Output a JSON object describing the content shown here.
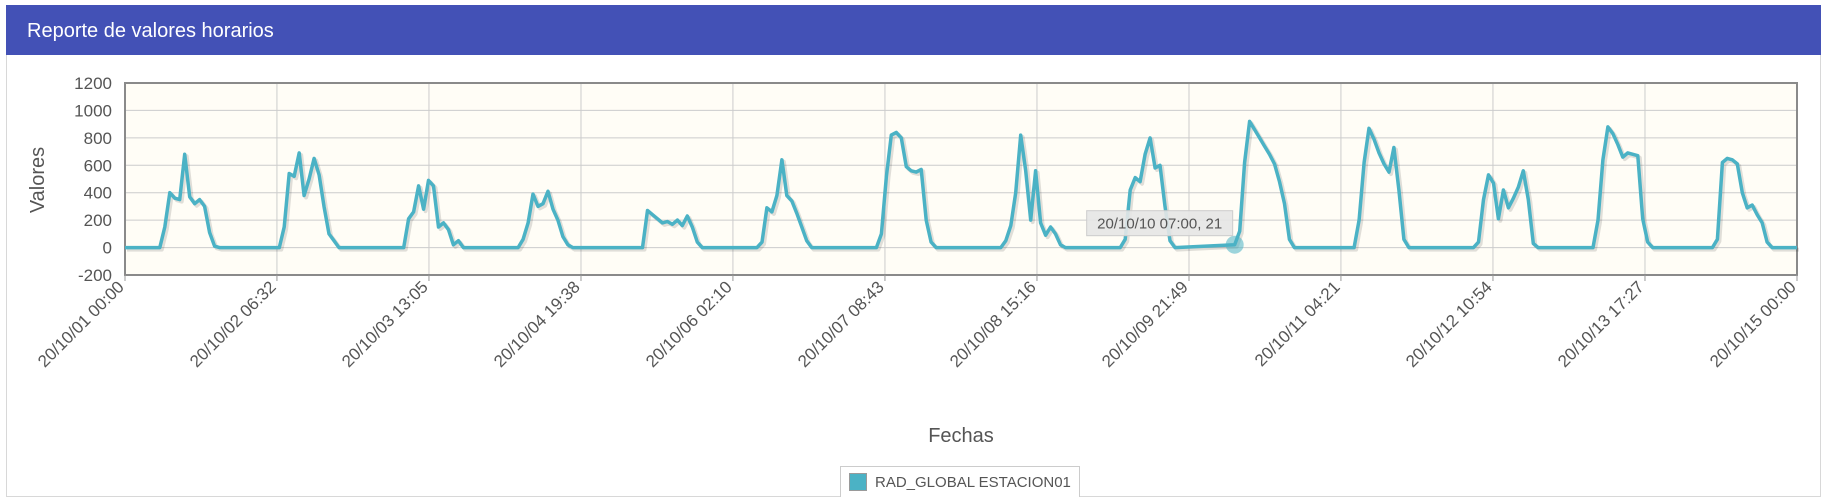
{
  "header": {
    "title": "Reporte de valores horarios"
  },
  "chart_data": {
    "type": "line",
    "title": "",
    "xlabel": "Fechas",
    "ylabel": "Valores",
    "ylim": [
      -200,
      1200
    ],
    "yticks": [
      -200,
      0,
      200,
      400,
      600,
      800,
      1000,
      1200
    ],
    "xlim": [
      "20/10/01 00:00",
      "20/10/15 00:00"
    ],
    "xtick_labels": [
      "20/10/01 00:00",
      "20/10/02 06:32",
      "20/10/03 13:05",
      "20/10/04 19:38",
      "20/10/06 02:10",
      "20/10/07 08:43",
      "20/10/08 15:16",
      "20/10/09 21:49",
      "20/10/11 04:21",
      "20/10/12 10:54",
      "20/10/13 17:27",
      "20/10/15 00:00"
    ],
    "grid": true,
    "legend_position": "bottom-center",
    "series": [
      {
        "name": "RAD_GLOBAL ESTACION01",
        "color": "#4bb2c5",
        "points": [
          [
            "20/10/01 00:00",
            0
          ],
          [
            "20/10/01 07:00",
            0
          ],
          [
            "20/10/01 08:00",
            150
          ],
          [
            "20/10/01 09:00",
            400
          ],
          [
            "20/10/01 10:00",
            360
          ],
          [
            "20/10/01 11:00",
            350
          ],
          [
            "20/10/01 12:00",
            680
          ],
          [
            "20/10/01 13:00",
            370
          ],
          [
            "20/10/01 14:00",
            320
          ],
          [
            "20/10/01 15:00",
            350
          ],
          [
            "20/10/01 16:00",
            300
          ],
          [
            "20/10/01 17:00",
            110
          ],
          [
            "20/10/01 18:00",
            10
          ],
          [
            "20/10/01 19:00",
            0
          ],
          [
            "20/10/02 07:00",
            0
          ],
          [
            "20/10/02 08:00",
            150
          ],
          [
            "20/10/02 09:00",
            540
          ],
          [
            "20/10/02 10:00",
            520
          ],
          [
            "20/10/02 11:00",
            690
          ],
          [
            "20/10/02 12:00",
            380
          ],
          [
            "20/10/02 13:00",
            500
          ],
          [
            "20/10/02 14:00",
            650
          ],
          [
            "20/10/02 15:00",
            530
          ],
          [
            "20/10/02 16:00",
            300
          ],
          [
            "20/10/02 17:00",
            100
          ],
          [
            "20/10/02 18:00",
            50
          ],
          [
            "20/10/02 19:00",
            0
          ],
          [
            "20/10/03 08:00",
            0
          ],
          [
            "20/10/03 09:00",
            210
          ],
          [
            "20/10/03 10:00",
            260
          ],
          [
            "20/10/03 11:00",
            450
          ],
          [
            "20/10/03 12:00",
            280
          ],
          [
            "20/10/03 13:00",
            490
          ],
          [
            "20/10/03 14:00",
            450
          ],
          [
            "20/10/03 15:00",
            150
          ],
          [
            "20/10/03 16:00",
            180
          ],
          [
            "20/10/03 17:00",
            130
          ],
          [
            "20/10/03 18:00",
            20
          ],
          [
            "20/10/03 19:00",
            50
          ],
          [
            "20/10/03 20:00",
            0
          ],
          [
            "20/10/04 07:00",
            0
          ],
          [
            "20/10/04 08:00",
            60
          ],
          [
            "20/10/04 09:00",
            180
          ],
          [
            "20/10/04 10:00",
            390
          ],
          [
            "20/10/04 11:00",
            300
          ],
          [
            "20/10/04 12:00",
            320
          ],
          [
            "20/10/04 13:00",
            410
          ],
          [
            "20/10/04 14:00",
            280
          ],
          [
            "20/10/04 15:00",
            200
          ],
          [
            "20/10/04 16:00",
            80
          ],
          [
            "20/10/04 17:00",
            20
          ],
          [
            "20/10/04 18:00",
            0
          ],
          [
            "20/10/05 08:00",
            0
          ],
          [
            "20/10/05 09:00",
            270
          ],
          [
            "20/10/05 10:00",
            240
          ],
          [
            "20/10/05 11:00",
            210
          ],
          [
            "20/10/05 12:00",
            180
          ],
          [
            "20/10/05 13:00",
            190
          ],
          [
            "20/10/05 14:00",
            170
          ],
          [
            "20/10/05 15:00",
            200
          ],
          [
            "20/10/05 16:00",
            160
          ],
          [
            "20/10/05 17:00",
            230
          ],
          [
            "20/10/05 18:00",
            150
          ],
          [
            "20/10/05 19:00",
            40
          ],
          [
            "20/10/05 20:00",
            0
          ],
          [
            "20/10/06 07:00",
            0
          ],
          [
            "20/10/06 08:00",
            40
          ],
          [
            "20/10/06 09:00",
            290
          ],
          [
            "20/10/06 10:00",
            260
          ],
          [
            "20/10/06 11:00",
            380
          ],
          [
            "20/10/06 12:00",
            640
          ],
          [
            "20/10/06 13:00",
            380
          ],
          [
            "20/10/06 14:00",
            340
          ],
          [
            "20/10/06 15:00",
            250
          ],
          [
            "20/10/06 16:00",
            150
          ],
          [
            "20/10/06 17:00",
            50
          ],
          [
            "20/10/06 18:00",
            0
          ],
          [
            "20/10/07 07:00",
            0
          ],
          [
            "20/10/07 08:00",
            100
          ],
          [
            "20/10/07 09:00",
            520
          ],
          [
            "20/10/07 10:00",
            820
          ],
          [
            "20/10/07 11:00",
            840
          ],
          [
            "20/10/07 12:00",
            800
          ],
          [
            "20/10/07 13:00",
            590
          ],
          [
            "20/10/07 14:00",
            560
          ],
          [
            "20/10/07 15:00",
            550
          ],
          [
            "20/10/07 16:00",
            570
          ],
          [
            "20/10/07 17:00",
            200
          ],
          [
            "20/10/07 18:00",
            40
          ],
          [
            "20/10/07 19:00",
            0
          ],
          [
            "20/10/08 08:00",
            0
          ],
          [
            "20/10/08 09:00",
            50
          ],
          [
            "20/10/08 10:00",
            160
          ],
          [
            "20/10/08 11:00",
            400
          ],
          [
            "20/10/08 12:00",
            820
          ],
          [
            "20/10/08 13:00",
            560
          ],
          [
            "20/10/08 14:00",
            200
          ],
          [
            "20/10/08 15:00",
            560
          ],
          [
            "20/10/08 16:00",
            180
          ],
          [
            "20/10/08 17:00",
            90
          ],
          [
            "20/10/08 18:00",
            150
          ],
          [
            "20/10/08 19:00",
            100
          ],
          [
            "20/10/08 20:00",
            20
          ],
          [
            "20/10/08 21:00",
            0
          ],
          [
            "20/10/09 08:00",
            0
          ],
          [
            "20/10/09 09:00",
            60
          ],
          [
            "20/10/09 10:00",
            420
          ],
          [
            "20/10/09 11:00",
            510
          ],
          [
            "20/10/09 12:00",
            480
          ],
          [
            "20/10/09 13:00",
            680
          ],
          [
            "20/10/09 14:00",
            800
          ],
          [
            "20/10/09 15:00",
            580
          ],
          [
            "20/10/09 16:00",
            600
          ],
          [
            "20/10/09 17:00",
            300
          ],
          [
            "20/10/09 18:00",
            50
          ],
          [
            "20/10/09 19:00",
            0
          ],
          [
            "20/10/10 07:00",
            21
          ],
          [
            "20/10/10 08:00",
            120
          ],
          [
            "20/10/10 09:00",
            620
          ],
          [
            "20/10/10 10:00",
            920
          ],
          [
            "20/10/10 11:00",
            860
          ],
          [
            "20/10/10 12:00",
            800
          ],
          [
            "20/10/10 13:00",
            740
          ],
          [
            "20/10/10 14:00",
            680
          ],
          [
            "20/10/10 15:00",
            610
          ],
          [
            "20/10/10 16:00",
            480
          ],
          [
            "20/10/10 17:00",
            320
          ],
          [
            "20/10/10 18:00",
            60
          ],
          [
            "20/10/10 19:00",
            0
          ],
          [
            "20/10/11 07:00",
            0
          ],
          [
            "20/10/11 08:00",
            200
          ],
          [
            "20/10/11 09:00",
            620
          ],
          [
            "20/10/11 10:00",
            870
          ],
          [
            "20/10/11 11:00",
            790
          ],
          [
            "20/10/11 12:00",
            690
          ],
          [
            "20/10/11 13:00",
            610
          ],
          [
            "20/10/11 14:00",
            550
          ],
          [
            "20/10/11 15:00",
            730
          ],
          [
            "20/10/11 16:00",
            420
          ],
          [
            "20/10/11 17:00",
            60
          ],
          [
            "20/10/11 18:00",
            0
          ],
          [
            "20/10/12 07:00",
            0
          ],
          [
            "20/10/12 08:00",
            40
          ],
          [
            "20/10/12 09:00",
            350
          ],
          [
            "20/10/12 10:00",
            530
          ],
          [
            "20/10/12 11:00",
            470
          ],
          [
            "20/10/12 12:00",
            210
          ],
          [
            "20/10/12 13:00",
            420
          ],
          [
            "20/10/12 14:00",
            290
          ],
          [
            "20/10/12 15:00",
            360
          ],
          [
            "20/10/12 16:00",
            440
          ],
          [
            "20/10/12 17:00",
            560
          ],
          [
            "20/10/12 18:00",
            350
          ],
          [
            "20/10/12 19:00",
            30
          ],
          [
            "20/10/12 20:00",
            0
          ],
          [
            "20/10/13 07:00",
            0
          ],
          [
            "20/10/13 08:00",
            200
          ],
          [
            "20/10/13 09:00",
            640
          ],
          [
            "20/10/13 10:00",
            880
          ],
          [
            "20/10/13 11:00",
            830
          ],
          [
            "20/10/13 12:00",
            750
          ],
          [
            "20/10/13 13:00",
            660
          ],
          [
            "20/10/13 14:00",
            690
          ],
          [
            "20/10/13 15:00",
            680
          ],
          [
            "20/10/13 16:00",
            670
          ],
          [
            "20/10/13 17:00",
            210
          ],
          [
            "20/10/13 18:00",
            40
          ],
          [
            "20/10/13 19:00",
            0
          ],
          [
            "20/10/14 07:00",
            0
          ],
          [
            "20/10/14 08:00",
            60
          ],
          [
            "20/10/14 09:00",
            620
          ],
          [
            "20/10/14 10:00",
            650
          ],
          [
            "20/10/14 11:00",
            640
          ],
          [
            "20/10/14 12:00",
            610
          ],
          [
            "20/10/14 13:00",
            400
          ],
          [
            "20/10/14 14:00",
            290
          ],
          [
            "20/10/14 15:00",
            310
          ],
          [
            "20/10/14 16:00",
            240
          ],
          [
            "20/10/14 17:00",
            180
          ],
          [
            "20/10/14 18:00",
            40
          ],
          [
            "20/10/14 19:00",
            0
          ],
          [
            "20/10/15 00:00",
            0
          ]
        ]
      }
    ],
    "tooltip": {
      "x": "20/10/10 07:00",
      "y": 21,
      "text": "20/10/10 07:00, 21"
    }
  }
}
